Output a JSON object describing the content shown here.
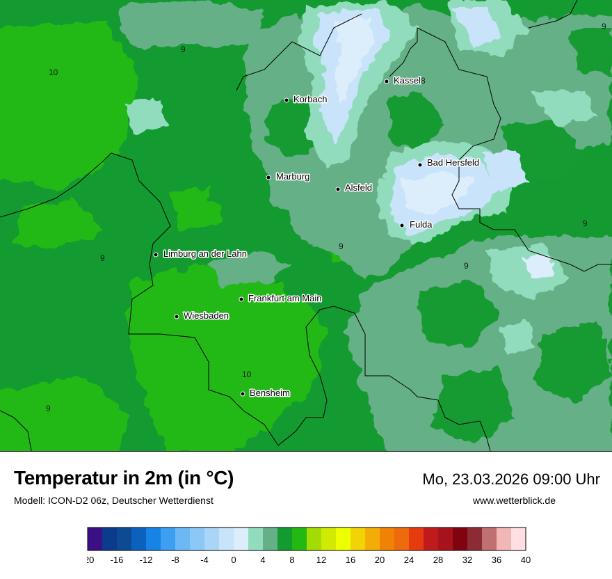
{
  "title": "Temperatur in 2m (in °C)",
  "model": "Modell: ICON-D2 06z, Deutscher Wetterdienst",
  "datetime": "Mo, 23.03.2026 09:00 Uhr",
  "website": "www.wetterblick.de",
  "cities": [
    {
      "name": "Kassel"
    },
    {
      "name": "Korbach"
    },
    {
      "name": "Bad Hersfeld"
    },
    {
      "name": "Marburg"
    },
    {
      "name": "Alsfeld"
    },
    {
      "name": "Fulda"
    },
    {
      "name": "Limburg an der Lahn"
    },
    {
      "name": "Frankfurt am Main"
    },
    {
      "name": "Wiesbaden"
    },
    {
      "name": "Bensheim"
    }
  ],
  "isolines": [
    "9",
    "10",
    "9",
    "9",
    "9",
    "9",
    "9",
    "10",
    "9",
    "8"
  ],
  "legend": {
    "ticks": [
      "-20",
      "-16",
      "-12",
      "-8",
      "-4",
      "0",
      "4",
      "8",
      "12",
      "16",
      "20",
      "24",
      "28",
      "32",
      "36",
      "40"
    ],
    "colors": [
      "#3b0f85",
      "#0b3b8c",
      "#0d4a91",
      "#0a62bd",
      "#1783e6",
      "#3d9ef2",
      "#6cb8f5",
      "#8cc8f5",
      "#a9d5f7",
      "#c8e3fa",
      "#dcedfb",
      "#91dcbc",
      "#66b087",
      "#139a30",
      "#24b812",
      "#a3db04",
      "#d1ea03",
      "#eeff00",
      "#f0d405",
      "#f4ad06",
      "#f08205",
      "#ee6a0d",
      "#e63a0f",
      "#c01b1b",
      "#a8121d",
      "#7f0410",
      "#8d2b34",
      "#c0706f",
      "#f2b6b6",
      "#ffdfe2"
    ]
  },
  "map_colors": {
    "deep_green": "#139a30",
    "light_green": "#24b812",
    "grey_green": "#66b087",
    "mint": "#91dcbc",
    "ice": "#dcedfb",
    "pale_blue": "#c8e3fa",
    "border": "#000000"
  }
}
